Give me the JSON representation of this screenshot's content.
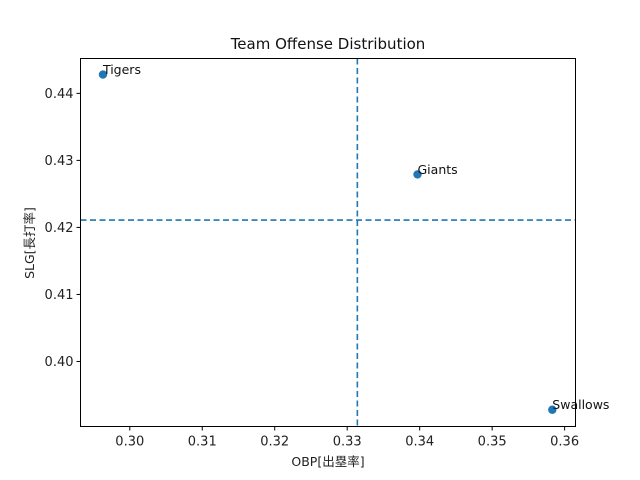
{
  "chart_data": {
    "type": "scatter",
    "title": "Team Offense Distribution",
    "xlabel": "OBP[出塁率]",
    "ylabel": "SLG[長打率]",
    "xlim": [
      0.2932,
      0.3615
    ],
    "ylim": [
      0.3903,
      0.4452
    ],
    "xticks": [
      0.3,
      0.31,
      0.32,
      0.33,
      0.34,
      0.35,
      0.36
    ],
    "xtick_labels": [
      "0.30",
      "0.31",
      "0.32",
      "0.33",
      "0.34",
      "0.35",
      "0.36"
    ],
    "yticks": [
      0.4,
      0.41,
      0.42,
      0.43,
      0.44
    ],
    "ytick_labels": [
      "0.40",
      "0.41",
      "0.42",
      "0.43",
      "0.44"
    ],
    "grid": false,
    "points": [
      {
        "label": "Tigers",
        "x": 0.2963,
        "y": 0.4428
      },
      {
        "label": "Giants",
        "x": 0.3397,
        "y": 0.4279
      },
      {
        "label": "Swallows",
        "x": 0.3583,
        "y": 0.3928
      }
    ],
    "reference_lines": {
      "vertical_x": 0.3314,
      "horizontal_y": 0.4211,
      "style": "dashed"
    },
    "colors": {
      "marker": "#1f77b4",
      "reference_line": "#1f77b4",
      "axes": "#000000"
    }
  }
}
